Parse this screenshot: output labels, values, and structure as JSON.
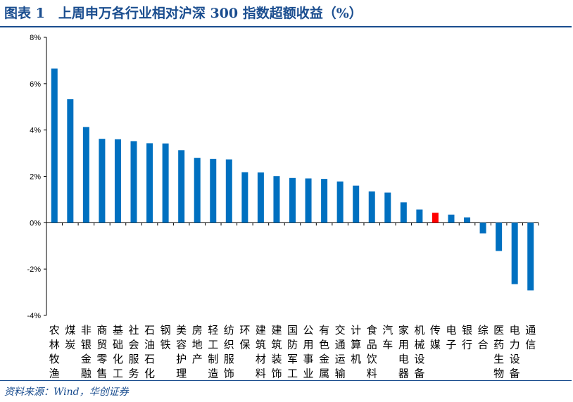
{
  "header": {
    "title": "图表 1　上周申万各行业相对沪深 300 指数超额收益（%）"
  },
  "footer": {
    "source": "资料来源：Wind，华创证券"
  },
  "colors": {
    "bar": "#0070c0",
    "highlight": "#ff0000",
    "title": "#1a4d8f"
  },
  "chart_data": {
    "type": "bar",
    "title": "",
    "xlabel": "",
    "ylabel": "",
    "ylim": [
      -4,
      8
    ],
    "yticks": [
      8,
      6,
      4,
      2,
      0,
      -2,
      -4
    ],
    "ytick_labels": [
      "8%",
      "6%",
      "4%",
      "2%",
      "0%",
      "-2%",
      "-4%"
    ],
    "grid": false,
    "legend": "none",
    "highlight_category": "传媒",
    "categories": [
      "农林牧渔",
      "煤炭",
      "非银金融",
      "商贸零售",
      "基础化工",
      "社会服务",
      "石油石化",
      "钢铁",
      "美容护理",
      "房地产",
      "轻工制造",
      "纺织服饰",
      "环保",
      "建筑材料",
      "建筑装饰",
      "国防军工",
      "公用事业",
      "有色金属",
      "交通运输",
      "计算机",
      "食品饮料",
      "汽车",
      "家用电器",
      "机械设备",
      "传媒",
      "电子",
      "银行",
      "综合",
      "医药生物",
      "电力设备",
      "通信"
    ],
    "values": [
      6.65,
      5.33,
      4.13,
      3.62,
      3.6,
      3.52,
      3.43,
      3.42,
      3.13,
      2.8,
      2.75,
      2.73,
      2.18,
      2.17,
      2.01,
      1.93,
      1.91,
      1.89,
      1.78,
      1.6,
      1.35,
      1.3,
      0.88,
      0.57,
      0.43,
      0.35,
      0.23,
      -0.46,
      -1.22,
      -2.65,
      -2.92
    ]
  }
}
